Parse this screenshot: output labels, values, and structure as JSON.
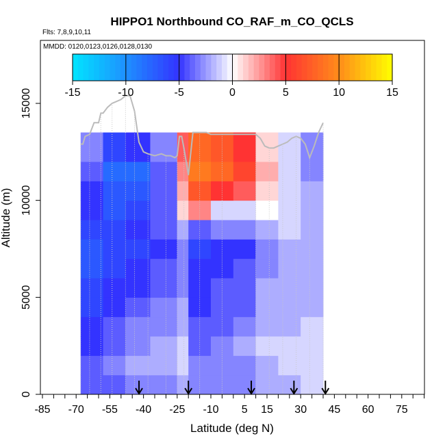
{
  "chart_data": {
    "type": "heatmap",
    "title": "HIPPO1 Northbound CO_RAF_m_CO_QCLS",
    "subtitle_flights": "Flts: 7,8,9,10,11",
    "subtitle_mmdd": "MMDD: 0120,0123,0126,0128,0130",
    "xlabel": "Latitude (deg N)",
    "ylabel": "Altitude (m)",
    "xlim": [
      -85,
      85
    ],
    "ylim": [
      0,
      17500
    ],
    "x_ticks": [
      -85,
      -70,
      -55,
      -40,
      -25,
      -10,
      5,
      15,
      30,
      45,
      60,
      75
    ],
    "y_ticks": [
      0,
      5000,
      10000,
      15000
    ],
    "colorbar": {
      "ticks": [
        -15,
        -10,
        -5,
        0,
        5,
        10,
        15
      ],
      "range": [
        -15,
        15
      ],
      "colors": [
        "#00e5ff",
        "#1e90ff",
        "#3333ff",
        "#ffffff",
        "#ff3333",
        "#ff8c1a",
        "#ffff00"
      ]
    },
    "flight_markers_lat": [
      -42,
      -20,
      8,
      27,
      41
    ],
    "column_x_ranges": [
      [
        -68,
        -58
      ],
      [
        -58,
        -48
      ],
      [
        -48,
        -37
      ],
      [
        -37,
        -25
      ],
      [
        -25,
        -20
      ],
      [
        -20,
        -10
      ],
      [
        -10,
        0
      ],
      [
        0,
        10
      ],
      [
        10,
        20
      ],
      [
        20,
        30
      ],
      [
        30,
        40
      ]
    ],
    "row_y_ranges": [
      [
        0,
        1000
      ],
      [
        1000,
        2000
      ],
      [
        2000,
        3000
      ],
      [
        3000,
        4000
      ],
      [
        4000,
        5000
      ],
      [
        5000,
        6000
      ],
      [
        6000,
        7000
      ],
      [
        7000,
        8000
      ],
      [
        8000,
        9000
      ],
      [
        9000,
        10000
      ],
      [
        10000,
        11000
      ],
      [
        11000,
        12000
      ],
      [
        12000,
        13500
      ]
    ],
    "values": [
      [
        -4,
        -4,
        -3,
        -3,
        -2,
        -3,
        -3,
        -3,
        -2,
        -2,
        -1
      ],
      [
        -4,
        -3,
        -2,
        -2,
        -1,
        -3,
        -3,
        -3,
        -2,
        -1,
        -1
      ],
      [
        -5,
        -4,
        -3,
        -2,
        -1,
        -4,
        -3,
        -2,
        -1,
        -1,
        -1
      ],
      [
        -5,
        -4,
        -3,
        -3,
        -2,
        -4,
        -4,
        -3,
        -2,
        -2,
        -1
      ],
      [
        -6,
        -5,
        -4,
        -3,
        -2,
        -5,
        -4,
        -4,
        -2,
        -2,
        -2
      ],
      [
        -6,
        -5,
        -5,
        -4,
        -3,
        -5,
        -4,
        -4,
        -2,
        -2,
        -2
      ],
      [
        -7,
        -6,
        -5,
        -4,
        -3,
        -5,
        -5,
        -4,
        -3,
        -2,
        -2
      ],
      [
        -7,
        -6,
        -6,
        -5,
        -3,
        -6,
        -5,
        -5,
        -3,
        -2,
        -2
      ],
      [
        -6,
        -6,
        -5,
        -4,
        -2,
        -4,
        -3,
        -3,
        -2,
        -1,
        -2
      ],
      [
        -5,
        -7,
        -6,
        -4,
        1,
        3,
        -1,
        -1,
        0,
        -1,
        -2
      ],
      [
        -5,
        -7,
        -7,
        -4,
        2,
        7,
        5,
        4,
        1,
        -1,
        -2
      ],
      [
        -4,
        -8,
        -8,
        -4,
        3,
        9,
        8,
        6,
        2,
        -1,
        -3
      ],
      [
        -3,
        -6,
        -5,
        -3,
        4,
        8,
        7,
        5,
        1,
        -1,
        -3
      ]
    ],
    "altitude_profile": {
      "lat": [
        -68,
        -67,
        -66,
        -64,
        -62,
        -60,
        -59,
        -58,
        -56,
        -54,
        -52,
        -50,
        -48,
        -46,
        -45,
        -44,
        -42,
        -40,
        -38,
        -35,
        -32,
        -30,
        -28,
        -26,
        -25,
        -24,
        -23,
        -22,
        -20,
        -18,
        -15,
        -12,
        -10,
        -5,
        0,
        5,
        10,
        12,
        14,
        16,
        18,
        20,
        22,
        24,
        26,
        28,
        30,
        32,
        34,
        36,
        38,
        40
      ],
      "alt": [
        12900,
        12900,
        13300,
        13400,
        14000,
        14000,
        14500,
        14500,
        14800,
        15000,
        15100,
        15200,
        15400,
        15400,
        15000,
        14600,
        13000,
        12500,
        12400,
        12300,
        12400,
        12300,
        12300,
        12200,
        12300,
        13300,
        13300,
        12700,
        11300,
        13500,
        13500,
        13500,
        13400,
        13400,
        13400,
        13400,
        13400,
        13200,
        12800,
        12700,
        12700,
        12800,
        12900,
        13000,
        13200,
        13300,
        13200,
        12900,
        12200,
        12800,
        13500,
        14000
      ]
    }
  }
}
